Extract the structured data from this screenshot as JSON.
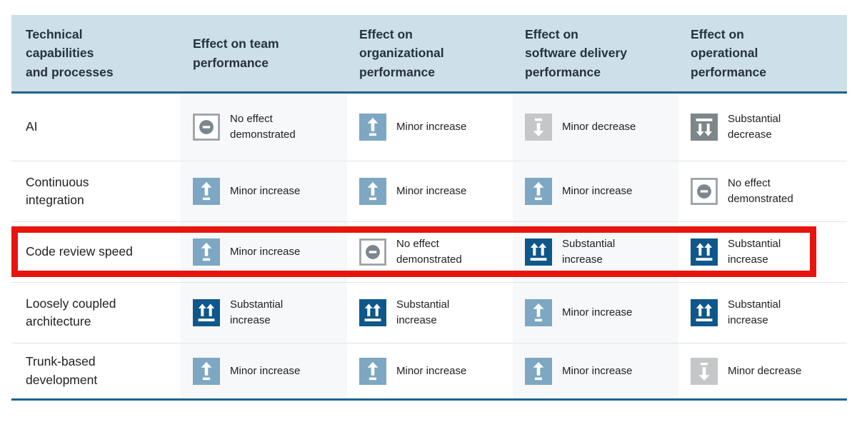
{
  "colors": {
    "header_bg": "#cddfe8",
    "accent_line": "#1e648f",
    "row_divider": "#e2e4e5",
    "column_stripe": "#f7f8f9",
    "header_text": "#26333b",
    "body_text": "#202124",
    "highlight_red": "#e8150f",
    "minor_increase_bg": "#7da7c2",
    "substantial_increase_bg": "#0f578b",
    "minor_decrease_bg": "#c4c7c8",
    "substantial_decrease_bg": "#7d868a",
    "no_effect_bg": "#ffffff",
    "no_effect_border": "#9aa0a6",
    "no_effect_glyph": "#7c868c",
    "icon_glyph": "#ffffff"
  },
  "icon_names": {
    "minor_increase": "minor-increase-icon",
    "substantial_increase": "substantial-increase-icon",
    "minor_decrease": "minor-decrease-icon",
    "substantial_decrease": "substantial-decrease-icon",
    "no_effect": "no-effect-icon"
  },
  "chart_data": {
    "type": "table",
    "title": "",
    "header": {
      "columns": [
        "Technical\ncapabilities\nand processes",
        "Effect on team\nperformance",
        "Effect on\norganizational\nperformance",
        "Effect on\nsoftware delivery\nperformance",
        "Effect on\noperational\nperformance"
      ]
    },
    "rows": [
      {
        "label": "AI",
        "highlighted": false,
        "effects": [
          {
            "type": "no_effect",
            "label": "No effect\ndemonstrated"
          },
          {
            "type": "minor_increase",
            "label": "Minor increase"
          },
          {
            "type": "minor_decrease",
            "label": "Minor decrease"
          },
          {
            "type": "substantial_decrease",
            "label": "Substantial\ndecrease"
          }
        ]
      },
      {
        "label": "Continuous\nintegration",
        "highlighted": false,
        "effects": [
          {
            "type": "minor_increase",
            "label": "Minor increase"
          },
          {
            "type": "minor_increase",
            "label": "Minor increase"
          },
          {
            "type": "minor_increase",
            "label": "Minor increase"
          },
          {
            "type": "no_effect",
            "label": "No effect\ndemonstrated"
          }
        ]
      },
      {
        "label": "Code review speed",
        "highlighted": true,
        "effects": [
          {
            "type": "minor_increase",
            "label": "Minor increase"
          },
          {
            "type": "no_effect",
            "label": "No effect\ndemonstrated"
          },
          {
            "type": "substantial_increase",
            "label": "Substantial\nincrease"
          },
          {
            "type": "substantial_increase",
            "label": "Substantial\nincrease"
          }
        ]
      },
      {
        "label": "Loosely coupled\narchitecture",
        "highlighted": false,
        "effects": [
          {
            "type": "substantial_increase",
            "label": "Substantial\nincrease"
          },
          {
            "type": "substantial_increase",
            "label": "Substantial\nincrease"
          },
          {
            "type": "minor_increase",
            "label": "Minor increase"
          },
          {
            "type": "substantial_increase",
            "label": "Substantial\nincrease"
          }
        ]
      },
      {
        "label": "Trunk-based\ndevelopment",
        "highlighted": false,
        "effects": [
          {
            "type": "minor_increase",
            "label": "Minor increase"
          },
          {
            "type": "minor_increase",
            "label": "Minor increase"
          },
          {
            "type": "minor_increase",
            "label": "Minor increase"
          },
          {
            "type": "minor_decrease",
            "label": "Minor decrease"
          }
        ]
      }
    ],
    "highlighted_row": "Code review speed",
    "legend_semantics": {
      "minor_increase": "Minor increase",
      "substantial_increase": "Substantial increase",
      "minor_decrease": "Minor decrease",
      "substantial_decrease": "Substantial decrease",
      "no_effect": "No effect demonstrated"
    }
  }
}
